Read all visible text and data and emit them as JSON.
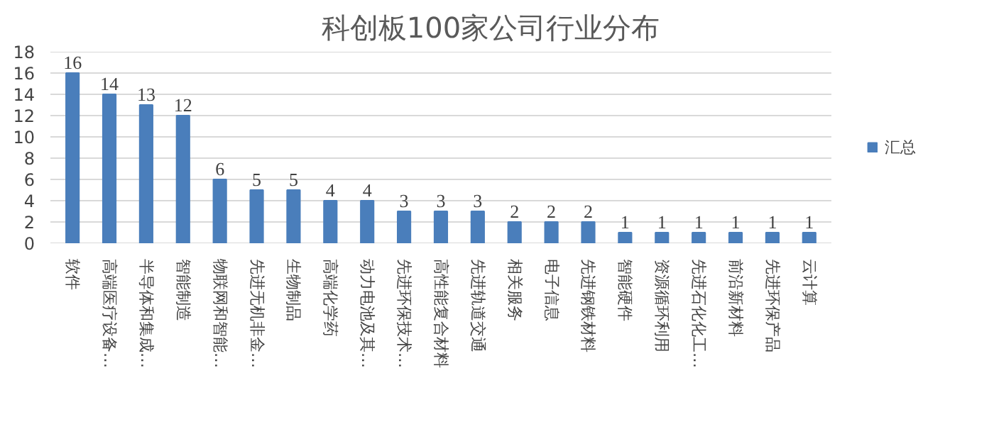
{
  "chart_data": {
    "type": "bar",
    "title": "科创板100家公司行业分布",
    "categories": [
      "软件",
      "高端医疗设备…",
      "半导体和集成…",
      "智能制造",
      "物联网和智能…",
      "先进无机非金…",
      "生物制品",
      "高端化学药",
      "动力电池及其…",
      "先进环保技术…",
      "高性能复合材料",
      "先进轨道交通",
      "相关服务",
      "电子信息",
      "先进钢铁材料",
      "智能硬件",
      "资源循环利用",
      "先进石化化工…",
      "前沿新材料",
      "先进环保产品",
      "云计算"
    ],
    "series": [
      {
        "name": "汇总",
        "color": "#4a7ebb",
        "values": [
          16,
          14,
          13,
          12,
          6,
          5,
          5,
          4,
          4,
          3,
          3,
          3,
          2,
          2,
          2,
          1,
          1,
          1,
          1,
          1,
          1
        ]
      }
    ],
    "ylim": [
      0,
      18
    ],
    "yticks": [
      0,
      2,
      4,
      6,
      8,
      10,
      12,
      14,
      16,
      18
    ],
    "grid": "y",
    "legend": "right",
    "data_labels": true
  }
}
